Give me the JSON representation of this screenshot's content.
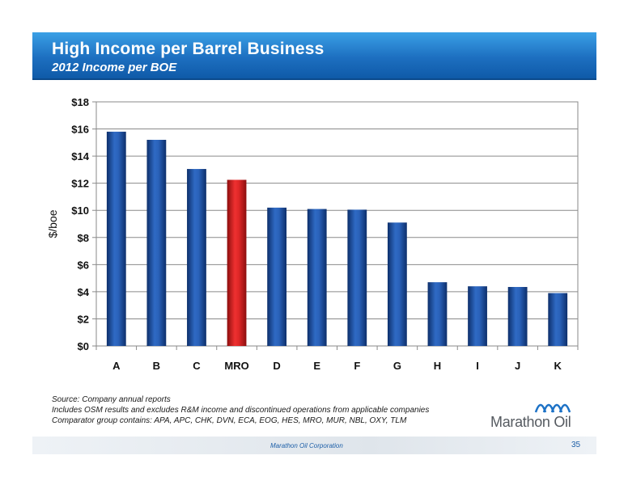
{
  "header": {
    "title": "High Income per Barrel Business",
    "subtitle": "2012 Income per BOE"
  },
  "chart_data": {
    "type": "bar",
    "categories": [
      "A",
      "B",
      "C",
      "MRO",
      "D",
      "E",
      "F",
      "G",
      "H",
      "I",
      "J",
      "K"
    ],
    "values": [
      15.8,
      15.2,
      13.05,
      12.25,
      10.2,
      10.1,
      10.05,
      9.1,
      4.7,
      4.4,
      4.35,
      3.9
    ],
    "highlight_category": "MRO",
    "ylabel": "$/boe",
    "ylim": [
      0,
      18
    ],
    "yticks": [
      0,
      2,
      4,
      6,
      8,
      10,
      12,
      14,
      16,
      18
    ],
    "ytick_labels": [
      "$0",
      "$2",
      "$4",
      "$6",
      "$8",
      "$10",
      "$12",
      "$14",
      "$16",
      "$18"
    ],
    "grid": true,
    "colors": {
      "bar": "#1f4e9e",
      "highlight": "#d42020"
    }
  },
  "notes": [
    "Source: Company annual reports",
    "Includes OSM results and excludes R&M income and discontinued operations from applicable companies",
    "Comparator group contains: APA, APC, CHK, DVN, ECA, EOG, HES, MRO, MUR, NBL, OXY, TLM"
  ],
  "logo": {
    "text": "Marathon Oil"
  },
  "footer": {
    "company": "Marathon Oil Corporation",
    "page": "35"
  }
}
